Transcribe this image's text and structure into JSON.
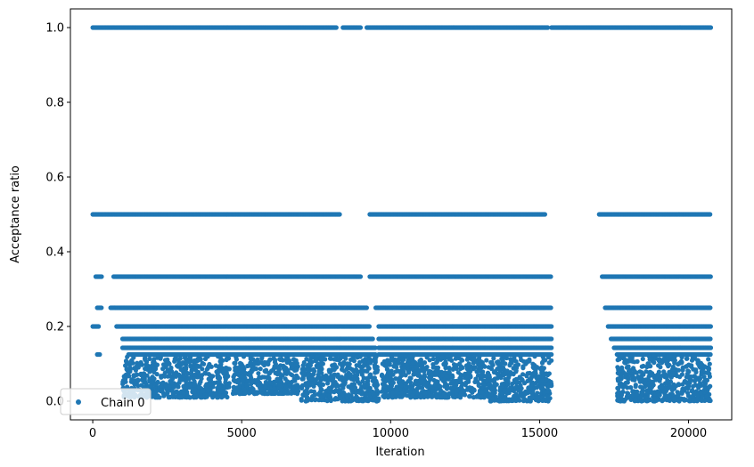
{
  "chart_data": {
    "type": "scatter",
    "title": "",
    "xlabel": "Iteration",
    "ylabel": "Acceptance ratio",
    "xlim": [
      -750,
      21450
    ],
    "ylim": [
      -0.05,
      1.05
    ],
    "xticks": [
      0,
      5000,
      10000,
      15000,
      20000
    ],
    "xtick_labels": [
      "0",
      "5000",
      "10000",
      "15000",
      "20000"
    ],
    "yticks": [
      0.0,
      0.2,
      0.4,
      0.6,
      0.8,
      1.0
    ],
    "ytick_labels": [
      "0.0",
      "0.2",
      "0.4",
      "0.6",
      "0.8",
      "1.0"
    ],
    "grid": false,
    "legend": {
      "position": "lower-left",
      "entries": [
        "Chain 0"
      ]
    },
    "series": [
      {
        "name": "Chain 0",
        "color": "#1f77b4",
        "marker": "circle",
        "levels": [
          {
            "y": 1.0,
            "ranges": [
              [
                0,
                8200
              ],
              [
                8400,
                9000
              ],
              [
                9200,
                15300
              ],
              [
                15400,
                20750
              ]
            ]
          },
          {
            "y": 0.5,
            "ranges": [
              [
                0,
                8300
              ],
              [
                9300,
                15200
              ],
              [
                17000,
                20750
              ]
            ]
          },
          {
            "y": 0.3333,
            "ranges": [
              [
                100,
                300
              ],
              [
                700,
                9000
              ],
              [
                9300,
                15400
              ],
              [
                17100,
                20750
              ]
            ]
          },
          {
            "y": 0.25,
            "ranges": [
              [
                150,
                300
              ],
              [
                600,
                9200
              ],
              [
                9500,
                15400
              ],
              [
                17200,
                20750
              ]
            ]
          },
          {
            "y": 0.2,
            "ranges": [
              [
                0,
                200
              ],
              [
                800,
                9300
              ],
              [
                9600,
                15400
              ],
              [
                17300,
                20750
              ]
            ]
          },
          {
            "y": 0.1667,
            "ranges": [
              [
                1000,
                9400
              ],
              [
                9600,
                15400
              ],
              [
                17400,
                20750
              ]
            ]
          },
          {
            "y": 0.1429,
            "ranges": [
              [
                1000,
                9500
              ],
              [
                9600,
                15400
              ],
              [
                17500,
                20750
              ]
            ]
          },
          {
            "y": 0.125,
            "ranges": [
              [
                150,
                250
              ],
              [
                1200,
                9500
              ],
              [
                9600,
                15400
              ],
              [
                17600,
                20750
              ]
            ]
          }
        ],
        "clusters": [
          {
            "x": [
              1000,
              4600
            ],
            "y": [
              0.01,
              0.12
            ]
          },
          {
            "x": [
              4700,
              6900
            ],
            "y": [
              0.02,
              0.12
            ]
          },
          {
            "x": [
              7000,
              9600
            ],
            "y": [
              0.0,
              0.12
            ]
          },
          {
            "x": [
              9700,
              13300
            ],
            "y": [
              0.01,
              0.12
            ]
          },
          {
            "x": [
              13300,
              15400
            ],
            "y": [
              0.0,
              0.12
            ]
          },
          {
            "x": [
              17600,
              20750
            ],
            "y": [
              0.0,
              0.12
            ]
          }
        ]
      }
    ]
  }
}
